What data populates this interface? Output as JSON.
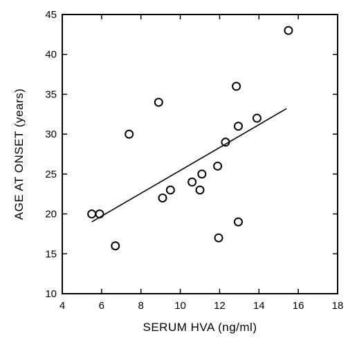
{
  "chart_data": {
    "type": "scatter",
    "title": "",
    "xlabel": "SERUM HVA (ng/ml)",
    "ylabel": "AGE AT ONSET (years)",
    "xlim": [
      4,
      18
    ],
    "ylim": [
      10,
      45
    ],
    "x_ticks": [
      4,
      6,
      8,
      10,
      12,
      14,
      16,
      18
    ],
    "y_ticks": [
      10,
      15,
      20,
      25,
      30,
      35,
      40,
      45
    ],
    "grid": false,
    "legend": "none",
    "series": [
      {
        "points": [
          {
            "x": 5.5,
            "y": 20
          },
          {
            "x": 5.9,
            "y": 20
          },
          {
            "x": 6.7,
            "y": 16
          },
          {
            "x": 7.4,
            "y": 30
          },
          {
            "x": 8.9,
            "y": 34
          },
          {
            "x": 9.1,
            "y": 22
          },
          {
            "x": 9.5,
            "y": 23
          },
          {
            "x": 10.6,
            "y": 24
          },
          {
            "x": 11.0,
            "y": 23
          },
          {
            "x": 11.1,
            "y": 25
          },
          {
            "x": 11.9,
            "y": 26
          },
          {
            "x": 11.95,
            "y": 17
          },
          {
            "x": 12.3,
            "y": 29
          },
          {
            "x": 12.85,
            "y": 36
          },
          {
            "x": 12.95,
            "y": 31
          },
          {
            "x": 12.95,
            "y": 19
          },
          {
            "x": 13.9,
            "y": 32
          },
          {
            "x": 15.5,
            "y": 43
          }
        ]
      }
    ],
    "regression_line": {
      "x1": 5.5,
      "y1": 19,
      "x2": 15.4,
      "y2": 33.2
    },
    "colors": {
      "marker_stroke": "#000000",
      "line": "#000000",
      "background": "#ffffff"
    }
  }
}
